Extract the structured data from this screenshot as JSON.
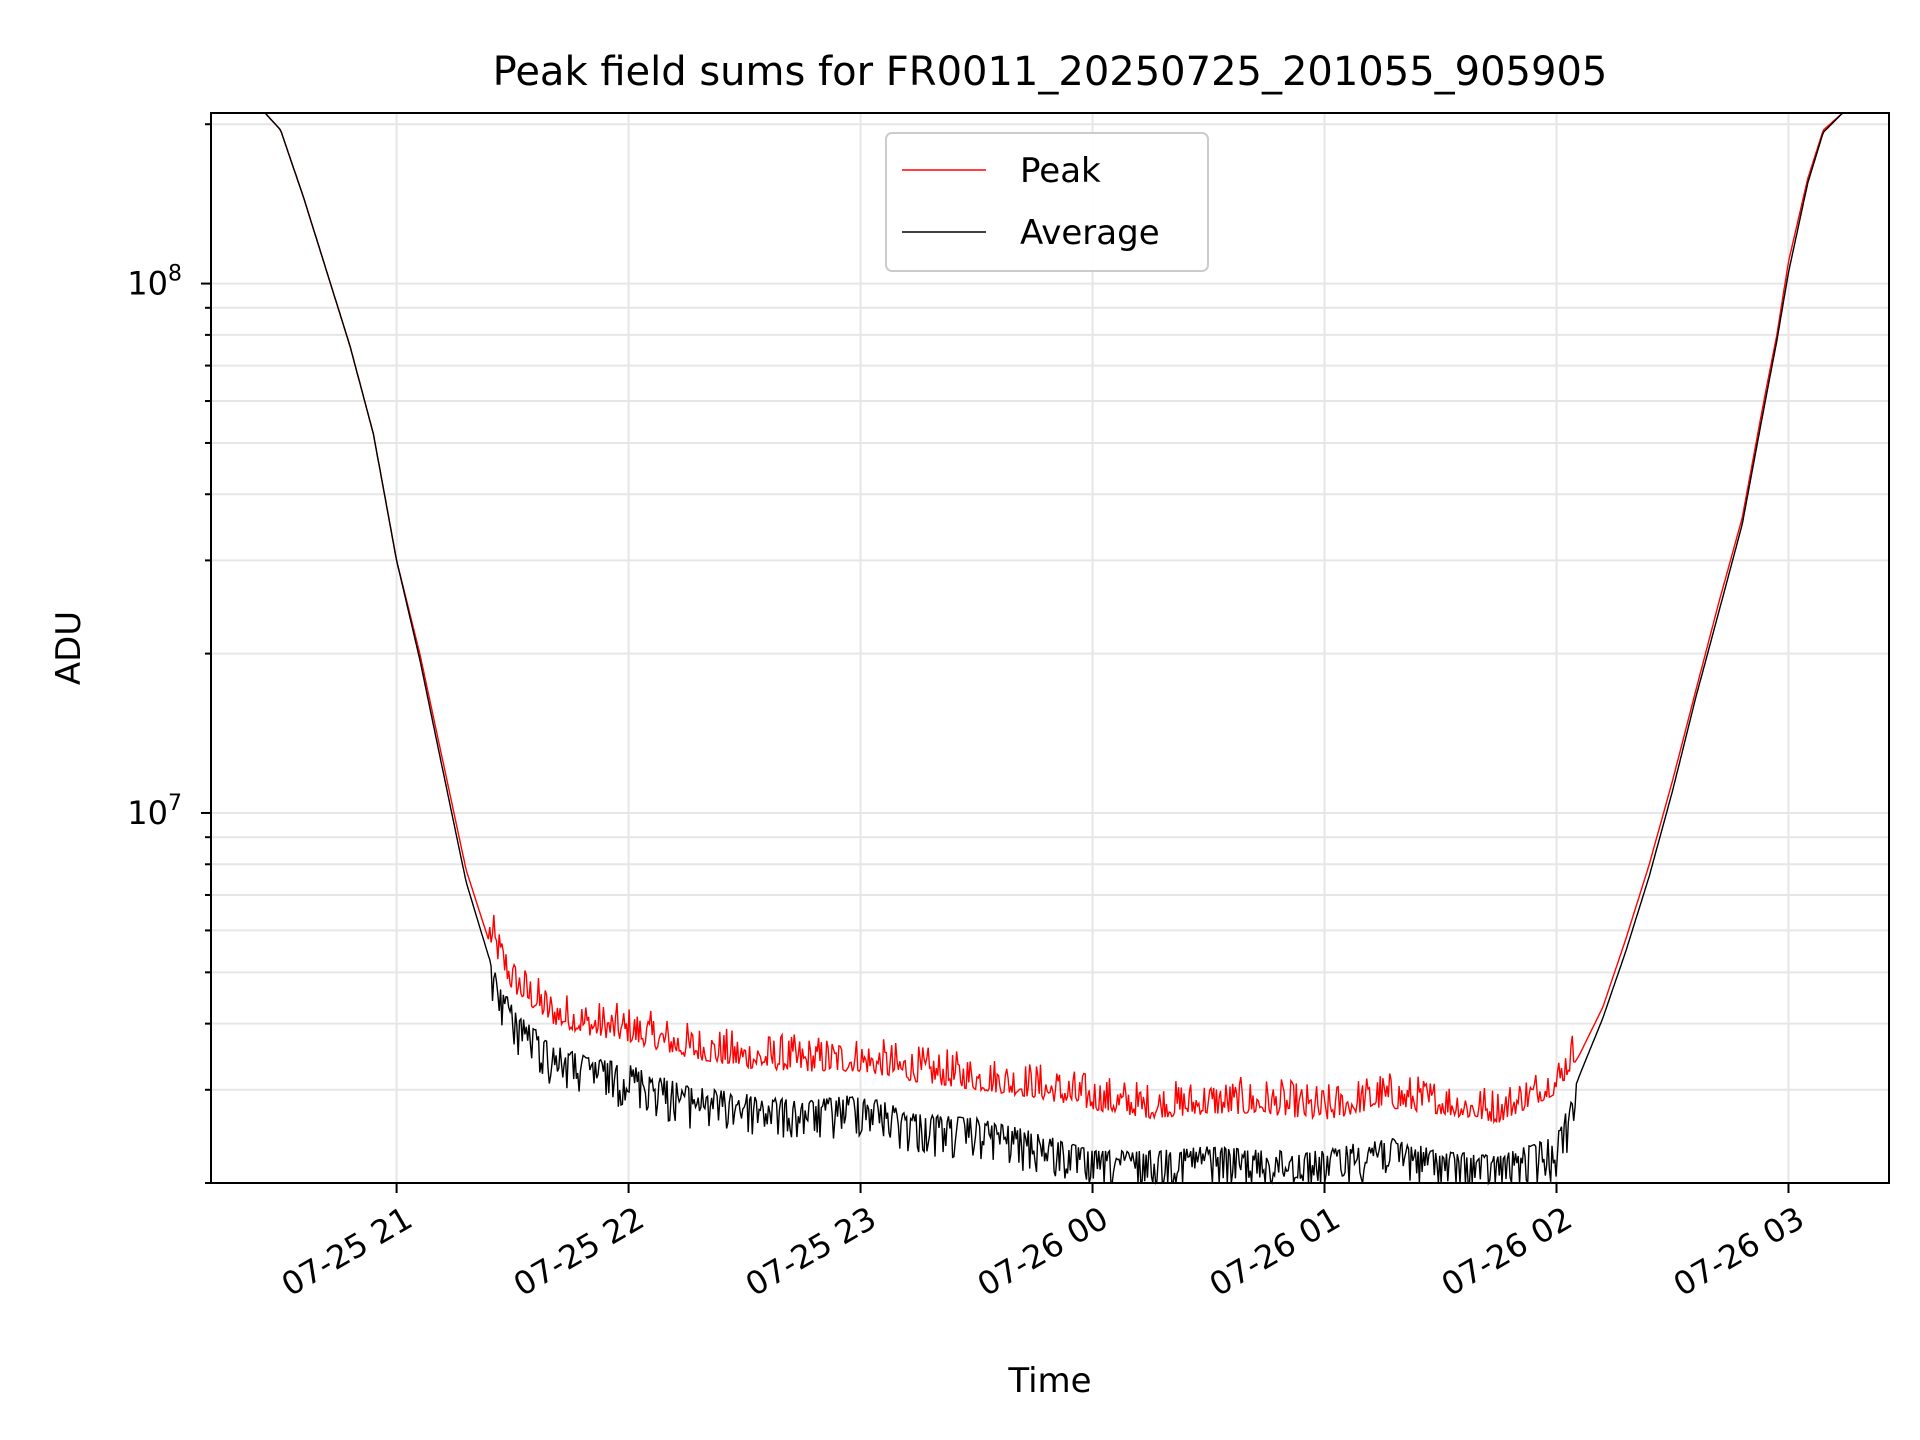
{
  "chart_data": {
    "type": "line",
    "title": "Peak field sums for FR0011_20250725_201055_905905",
    "xlabel": "Time",
    "ylabel": "ADU",
    "yscale": "log",
    "ylim": [
      2000000,
      210000000
    ],
    "xlim": [
      "2025-07-25 20:12",
      "2025-07-26 03:26"
    ],
    "grid": true,
    "legend_position": "top-center",
    "x_ticks": [
      "07-25 21",
      "07-25 22",
      "07-25 23",
      "07-26 00",
      "07-26 01",
      "07-26 02",
      "07-26 03"
    ],
    "y_ticks": [
      {
        "value": 10000000,
        "base": "10",
        "exp": "7"
      },
      {
        "value": 100000000,
        "base": "10",
        "exp": "8"
      }
    ],
    "series": [
      {
        "name": "Peak",
        "color": "#ff0000",
        "x": [
          "2025-07-25 20:26",
          "2025-07-25 20:30",
          "2025-07-25 20:36",
          "2025-07-25 20:42",
          "2025-07-25 20:48",
          "2025-07-25 20:54",
          "2025-07-25 21:00",
          "2025-07-25 21:06",
          "2025-07-25 21:12",
          "2025-07-25 21:18",
          "2025-07-25 21:24",
          "2025-07-25 21:30",
          "2025-07-25 21:40",
          "2025-07-25 21:50",
          "2025-07-25 22:00",
          "2025-07-25 22:15",
          "2025-07-25 22:30",
          "2025-07-25 22:45",
          "2025-07-25 23:00",
          "2025-07-25 23:15",
          "2025-07-25 23:30",
          "2025-07-25 23:45",
          "2025-07-26 00:00",
          "2025-07-26 00:15",
          "2025-07-26 00:30",
          "2025-07-26 00:45",
          "2025-07-26 01:00",
          "2025-07-26 01:15",
          "2025-07-26 01:30",
          "2025-07-26 01:45",
          "2025-07-26 02:00",
          "2025-07-26 02:06",
          "2025-07-26 02:12",
          "2025-07-26 02:18",
          "2025-07-26 02:24",
          "2025-07-26 02:30",
          "2025-07-26 02:36",
          "2025-07-26 02:42",
          "2025-07-26 02:48",
          "2025-07-26 02:54",
          "2025-07-26 02:57",
          "2025-07-26 03:00",
          "2025-07-26 03:05",
          "2025-07-26 03:09",
          "2025-07-26 03:14",
          "2025-07-26 03:18"
        ],
        "values": [
          210000000,
          195000000,
          145000000,
          105000000,
          76000000,
          52000000,
          30000000,
          20000000,
          12500000,
          7800000,
          5700000,
          4600000,
          4000000,
          3800000,
          3700000,
          3450000,
          3300000,
          3250000,
          3250000,
          3100000,
          3000000,
          2900000,
          2750000,
          2650000,
          2700000,
          2700000,
          2620000,
          2780000,
          2700000,
          2600000,
          2950000,
          3500000,
          4300000,
          5800000,
          8000000,
          11500000,
          17000000,
          25000000,
          36000000,
          62000000,
          80000000,
          110000000,
          158000000,
          195000000,
          210000000,
          210000000
        ]
      },
      {
        "name": "Average",
        "color": "#000000",
        "x": [
          "2025-07-25 20:26",
          "2025-07-25 20:30",
          "2025-07-25 20:36",
          "2025-07-25 20:42",
          "2025-07-25 20:48",
          "2025-07-25 20:54",
          "2025-07-25 21:00",
          "2025-07-25 21:06",
          "2025-07-25 21:12",
          "2025-07-25 21:18",
          "2025-07-25 21:24",
          "2025-07-25 21:30",
          "2025-07-25 21:40",
          "2025-07-25 21:50",
          "2025-07-25 22:00",
          "2025-07-25 22:15",
          "2025-07-25 22:30",
          "2025-07-25 22:45",
          "2025-07-25 23:00",
          "2025-07-25 23:15",
          "2025-07-25 23:30",
          "2025-07-25 23:45",
          "2025-07-26 00:00",
          "2025-07-26 00:15",
          "2025-07-26 00:30",
          "2025-07-26 00:45",
          "2025-07-26 01:00",
          "2025-07-26 01:15",
          "2025-07-26 01:30",
          "2025-07-26 01:45",
          "2025-07-26 02:00",
          "2025-07-26 02:06",
          "2025-07-26 02:12",
          "2025-07-26 02:18",
          "2025-07-26 02:24",
          "2025-07-26 02:30",
          "2025-07-26 02:36",
          "2025-07-26 02:42",
          "2025-07-26 02:48",
          "2025-07-26 02:54",
          "2025-07-26 02:57",
          "2025-07-26 03:00",
          "2025-07-26 03:05",
          "2025-07-26 03:09",
          "2025-07-26 03:14",
          "2025-07-26 03:18"
        ],
        "values": [
          210000000,
          195000000,
          145000000,
          105000000,
          76000000,
          52000000,
          30000000,
          19500000,
          12000000,
          7400000,
          5300000,
          4300000,
          3650000,
          3450000,
          3350000,
          3050000,
          2950000,
          2850000,
          2950000,
          2700000,
          2650000,
          2500000,
          2300000,
          2300000,
          2350000,
          2300000,
          2300000,
          2450000,
          2300000,
          2250000,
          2450000,
          3200000,
          4100000,
          5500000,
          7600000,
          11000000,
          16500000,
          24000000,
          35000000,
          60000000,
          78000000,
          105000000,
          155000000,
          193000000,
          210000000,
          210000000
        ]
      }
    ]
  }
}
